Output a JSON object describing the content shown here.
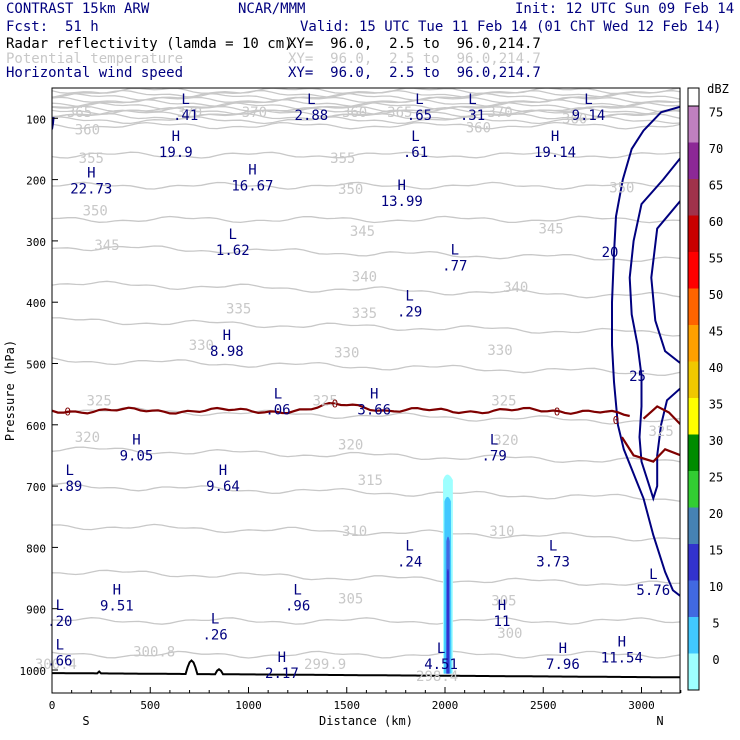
{
  "header": {
    "model": "CONTRAST 15km ARW",
    "center": "NCAR/MMM",
    "init": "Init: 12 UTC Sun 09 Feb 14",
    "fcst_label": "Fcst:",
    "fcst_value": "51 h",
    "valid": "Valid: 15 UTC Tue 11 Feb 14 (01 ChT Wed 12 Feb 14)",
    "fields": [
      {
        "name": "Radar reflectivity (lamda = 10 cm)",
        "xy": "XY=  96.0,  2.5 to  96.0,214.7"
      },
      {
        "name": "Potential temperature",
        "xy": "XY=  96.0,  2.5 to  96.0,214.7"
      },
      {
        "name": "Horizontal wind speed",
        "xy": "XY=  96.0,  2.5 to  96.0,214.7"
      }
    ]
  },
  "chart_data": {
    "type": "cross-section",
    "xlabel": "Distance (km)",
    "ylabel": "Pressure (hPa)",
    "xlim": [
      0,
      3200
    ],
    "ylim": [
      1050,
      50
    ],
    "x_ticks": [
      "0",
      "500",
      "1000",
      "1500",
      "2000",
      "2500",
      "3000"
    ],
    "y_ticks": [
      "100",
      "200",
      "300",
      "400",
      "500",
      "600",
      "700",
      "800",
      "900",
      "1000"
    ],
    "left_end": "S",
    "right_end": "N",
    "colorbar": {
      "unit": "dBZ",
      "levels": [
        "0",
        "5",
        "10",
        "15",
        "20",
        "25",
        "30",
        "35",
        "40",
        "45",
        "50",
        "55",
        "60",
        "65",
        "70",
        "75"
      ],
      "colors": [
        "#9effff",
        "#41c8ff",
        "#4169e1",
        "#3232cd",
        "#4682b4",
        "#32cd32",
        "#008b00",
        "#ffff00",
        "#f0c800",
        "#ffa000",
        "#ff6400",
        "#ff0000",
        "#c80000",
        "#a0324b",
        "#8c2896",
        "#c080c0"
      ]
    },
    "theta_labels": [
      {
        "v": "365",
        "x": 140,
        "p": 90
      },
      {
        "v": "370",
        "x": 700,
        "p": 90
      },
      {
        "v": "370",
        "x": 1030,
        "p": 90
      },
      {
        "v": "360",
        "x": 1540,
        "p": 90
      },
      {
        "v": "365",
        "x": 1770,
        "p": 90
      },
      {
        "v": "370",
        "x": 2280,
        "p": 90
      },
      {
        "v": "360",
        "x": 2660,
        "p": 100
      },
      {
        "v": "360",
        "x": 180,
        "p": 118
      },
      {
        "v": "360",
        "x": 2170,
        "p": 115
      },
      {
        "v": "355",
        "x": 200,
        "p": 165
      },
      {
        "v": "355",
        "x": 1480,
        "p": 165
      },
      {
        "v": "350",
        "x": 1520,
        "p": 215
      },
      {
        "v": "350",
        "x": 2900,
        "p": 213
      },
      {
        "v": "350",
        "x": 220,
        "p": 250
      },
      {
        "v": "345",
        "x": 280,
        "p": 307
      },
      {
        "v": "345",
        "x": 1580,
        "p": 284
      },
      {
        "v": "345",
        "x": 2540,
        "p": 280
      },
      {
        "v": "340",
        "x": 1590,
        "p": 358
      },
      {
        "v": "340",
        "x": 2360,
        "p": 375
      },
      {
        "v": "335",
        "x": 950,
        "p": 410
      },
      {
        "v": "335",
        "x": 1590,
        "p": 418
      },
      {
        "v": "330",
        "x": 760,
        "p": 470
      },
      {
        "v": "330",
        "x": 1500,
        "p": 482
      },
      {
        "v": "330",
        "x": 2280,
        "p": 478
      },
      {
        "v": "325",
        "x": 240,
        "p": 560
      },
      {
        "v": "325",
        "x": 1390,
        "p": 560
      },
      {
        "v": "325",
        "x": 2300,
        "p": 560
      },
      {
        "v": "325",
        "x": 3100,
        "p": 610
      },
      {
        "v": "320",
        "x": 180,
        "p": 620
      },
      {
        "v": "320",
        "x": 1520,
        "p": 632
      },
      {
        "v": "320",
        "x": 2310,
        "p": 625
      },
      {
        "v": "315",
        "x": 1620,
        "p": 690
      },
      {
        "v": "310",
        "x": 1540,
        "p": 773
      },
      {
        "v": "310",
        "x": 2290,
        "p": 773
      },
      {
        "v": "305",
        "x": 1520,
        "p": 883
      },
      {
        "v": "305",
        "x": 2300,
        "p": 887
      },
      {
        "v": "300",
        "x": 2330,
        "p": 940
      },
      {
        "v": "300.8",
        "x": 520,
        "p": 970
      },
      {
        "v": "299.9",
        "x": 1390,
        "p": 990
      },
      {
        "v": "300.4",
        "x": 20,
        "p": 990
      },
      {
        "v": "298.4",
        "x": 1960,
        "p": 1010
      }
    ],
    "wind_extrema": [
      {
        "t": "L",
        "v": ".41",
        "x": 680,
        "p": 90
      },
      {
        "t": "L",
        "v": "2.88",
        "x": 1320,
        "p": 90
      },
      {
        "t": "L",
        "v": ".65",
        "x": 1870,
        "p": 90
      },
      {
        "t": "L",
        "v": ".31",
        "x": 2140,
        "p": 90
      },
      {
        "t": "L",
        "v": "9.14",
        "x": 2730,
        "p": 90
      },
      {
        "t": "H",
        "v": "19.9",
        "x": 630,
        "p": 150
      },
      {
        "t": "L",
        "v": ".61",
        "x": 1850,
        "p": 150
      },
      {
        "t": "H",
        "v": "19.14",
        "x": 2560,
        "p": 150
      },
      {
        "t": "H",
        "v": "16.67",
        "x": 1020,
        "p": 205
      },
      {
        "t": "H",
        "v": "22.73",
        "x": 200,
        "p": 210
      },
      {
        "t": "H",
        "v": "13.99",
        "x": 1780,
        "p": 230
      },
      {
        "t": "L",
        "v": "1.62",
        "x": 920,
        "p": 310
      },
      {
        "t": "L",
        "v": ".77",
        "x": 2050,
        "p": 335
      },
      {
        "t": "L",
        "v": ".29",
        "x": 1820,
        "p": 410
      },
      {
        "t": "H",
        "v": "8.98",
        "x": 890,
        "p": 475
      },
      {
        "t": "L",
        "v": ".06",
        "x": 1150,
        "p": 570
      },
      {
        "t": "H",
        "v": "3.66",
        "x": 1640,
        "p": 570
      },
      {
        "t": "H",
        "v": "9.05",
        "x": 430,
        "p": 645
      },
      {
        "t": "L",
        "v": ".79",
        "x": 2250,
        "p": 645
      },
      {
        "t": "L",
        "v": ".89",
        "x": 90,
        "p": 695
      },
      {
        "t": "H",
        "v": "9.64",
        "x": 870,
        "p": 695
      },
      {
        "t": "L",
        "v": ".24",
        "x": 1820,
        "p": 818
      },
      {
        "t": "L",
        "v": "3.73",
        "x": 2550,
        "p": 818
      },
      {
        "t": "L",
        "v": "5.76",
        "x": 3060,
        "p": 865
      },
      {
        "t": "H",
        "v": "9.51",
        "x": 330,
        "p": 890
      },
      {
        "t": "L",
        "v": ".96",
        "x": 1250,
        "p": 890
      },
      {
        "t": "H",
        "v": "11",
        "x": 2290,
        "p": 915
      },
      {
        "t": "L",
        "v": ".20",
        "x": 40,
        "p": 915
      },
      {
        "t": "L",
        "v": ".26",
        "x": 830,
        "p": 937
      },
      {
        "t": "L",
        "v": ".66",
        "x": 40,
        "p": 980
      },
      {
        "t": "H",
        "v": "2.17",
        "x": 1170,
        "p": 1000
      },
      {
        "t": "L",
        "v": "4.51",
        "x": 1980,
        "p": 985
      },
      {
        "t": "H",
        "v": "7.96",
        "x": 2600,
        "p": 985
      },
      {
        "t": "H",
        "v": "11.54",
        "x": 2900,
        "p": 975
      }
    ],
    "wind_isotach_labels": [
      {
        "v": "20",
        "x": 2840,
        "p": 318
      },
      {
        "v": "25",
        "x": 2980,
        "p": 520
      }
    ],
    "zero_line_labels": [
      {
        "v": "0",
        "x": 80,
        "p": 578
      },
      {
        "v": "0",
        "x": 1440,
        "p": 565
      },
      {
        "v": "0",
        "x": 2570,
        "p": 578
      },
      {
        "v": "0",
        "x": 2870,
        "p": 592
      }
    ]
  }
}
